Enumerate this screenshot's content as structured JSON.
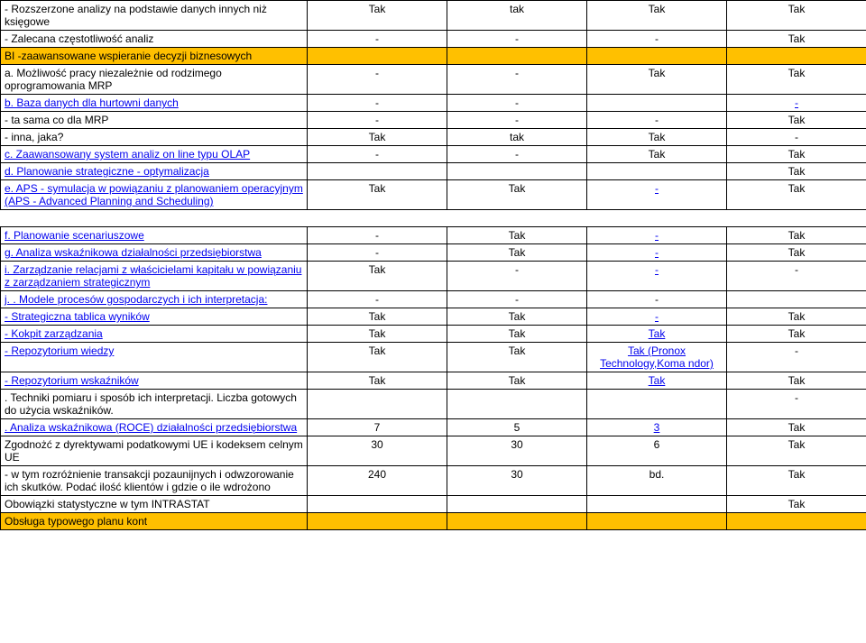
{
  "colors": {
    "header_bg": "#ffc000",
    "link": "#0000ee",
    "bg": "#ffffff",
    "border": "#000000",
    "text": "#000000"
  },
  "rows": [
    {
      "label": "- Rozszerzone analizy na podstawie danych innych niż księgowe",
      "vals": [
        "Tak",
        "tak",
        "Tak",
        "Tak"
      ],
      "link": false
    },
    {
      "label": "- Zalecana częstotliwość analiz",
      "vals": [
        "-",
        "-",
        "-",
        "Tak"
      ],
      "link": false
    },
    {
      "header": true,
      "label": "BI -zaawansowane wspieranie decyzji biznesowych",
      "vals": [
        "",
        "",
        "",
        ""
      ],
      "link": false
    },
    {
      "label": "a. Możliwość pracy niezależnie od rodzimego oprogramowania MRP",
      "vals": [
        "-",
        "-",
        "Tak",
        "Tak"
      ],
      "link": false
    },
    {
      "label": "b. Baza danych dla hurtowni danych",
      "vals": [
        "-",
        "-",
        "",
        "-"
      ],
      "link": true,
      "linkcol": [
        false,
        false,
        false,
        true
      ]
    },
    {
      "label": "- ta sama co dla MRP",
      "vals": [
        "-",
        "-",
        "-",
        "Tak"
      ],
      "link": false
    },
    {
      "label": "- inna, jaka?",
      "vals": [
        "Tak",
        "tak",
        "Tak",
        "-"
      ],
      "link": false
    },
    {
      "label": "c. Zaawansowany system analiz on line typu OLAP",
      "vals": [
        "-",
        "-",
        "Tak",
        "Tak"
      ],
      "link": true
    },
    {
      "label": "d.  Planowanie strategiczne - optymalizacja",
      "vals": [
        "",
        "",
        "",
        "Tak"
      ],
      "link": true
    },
    {
      "label": "e. APS - symulacja w powiązaniu z planowaniem operacyjnym (APS - Advanced Planning and Scheduling)",
      "vals": [
        "Tak",
        "Tak",
        "-",
        "Tak"
      ],
      "link": true,
      "linkcol": [
        false,
        false,
        true,
        false
      ]
    },
    {
      "spacer": true
    },
    {
      "label": "f. Planowanie scenariuszowe",
      "vals": [
        "-",
        "Tak",
        "-",
        "Tak"
      ],
      "link": true,
      "linkcol": [
        false,
        false,
        true,
        false
      ]
    },
    {
      "label": "g. Analiza wskaźnikowa działalności przedsiębiorstwa",
      "vals": [
        "-",
        "Tak",
        "-",
        "Tak"
      ],
      "link": true,
      "linkcol": [
        false,
        false,
        true,
        false
      ]
    },
    {
      "label": "i. Zarządzanie relacjami z właścicielami kapitału w powiązaniu z zarządzaniem strategicznym",
      "vals": [
        "Tak",
        "-",
        "-",
        "-"
      ],
      "link": true,
      "linkcol": [
        false,
        false,
        true,
        false
      ]
    },
    {
      "label": "j. . Modele procesów gospodarczych i ich interpretacja:",
      "vals": [
        "-",
        "-",
        "-",
        ""
      ],
      "link": true
    },
    {
      "label": "- Strategiczna tablica wyników",
      "vals": [
        "Tak",
        "Tak",
        "-",
        "Tak"
      ],
      "link": true,
      "linkcol": [
        false,
        false,
        true,
        false
      ]
    },
    {
      "label": "- Kokpit zarządzania",
      "vals": [
        "Tak",
        "Tak",
        "Tak",
        "Tak"
      ],
      "link": true,
      "linkcol": [
        false,
        false,
        true,
        false
      ]
    },
    {
      "label": "- Repozytorium wiedzy",
      "vals": [
        "Tak",
        "Tak",
        "Tak (Pronox Technology,Koma ndor)",
        "-"
      ],
      "link": true,
      "linkcol": [
        false,
        false,
        true,
        false
      ]
    },
    {
      "label": "- Repozytorium wskaźników",
      "vals": [
        "Tak",
        "Tak",
        "Tak",
        "Tak"
      ],
      "link": true,
      "linkcol": [
        false,
        false,
        true,
        false
      ]
    },
    {
      "label": ". Techniki pomiaru i sposób ich interpretacji. Liczba gotowych do użycia wskaźników.",
      "vals": [
        "",
        "",
        "",
        "-"
      ],
      "link": false
    },
    {
      "label": ". Analiza wskaźnikowa (ROCE) działalności przedsiębiorstwa",
      "vals": [
        "7",
        "5",
        "3",
        "Tak"
      ],
      "link": true,
      "linkcol": [
        false,
        false,
        true,
        false
      ]
    },
    {
      "label": "Zgodnożć z dyrektywami podatkowymi UE i kodeksem celnym UE",
      "vals": [
        "30",
        "30",
        "6",
        "Tak"
      ],
      "link": false
    },
    {
      "label": "- w tym rozróżnienie transakcji pozaunijnych i odwzorowanie ich skutków. Podać ilość klientów i gdzie o ile wdrożono",
      "vals": [
        "240",
        "30",
        "bd.",
        "Tak"
      ],
      "link": false
    },
    {
      "label": "Obowiązki statystyczne w tym INTRASTAT",
      "vals": [
        "",
        "",
        "",
        "Tak"
      ],
      "link": false
    },
    {
      "header": true,
      "label": "Obsługa typowego planu kont",
      "vals": [
        "",
        "",
        "",
        ""
      ],
      "link": false
    }
  ]
}
